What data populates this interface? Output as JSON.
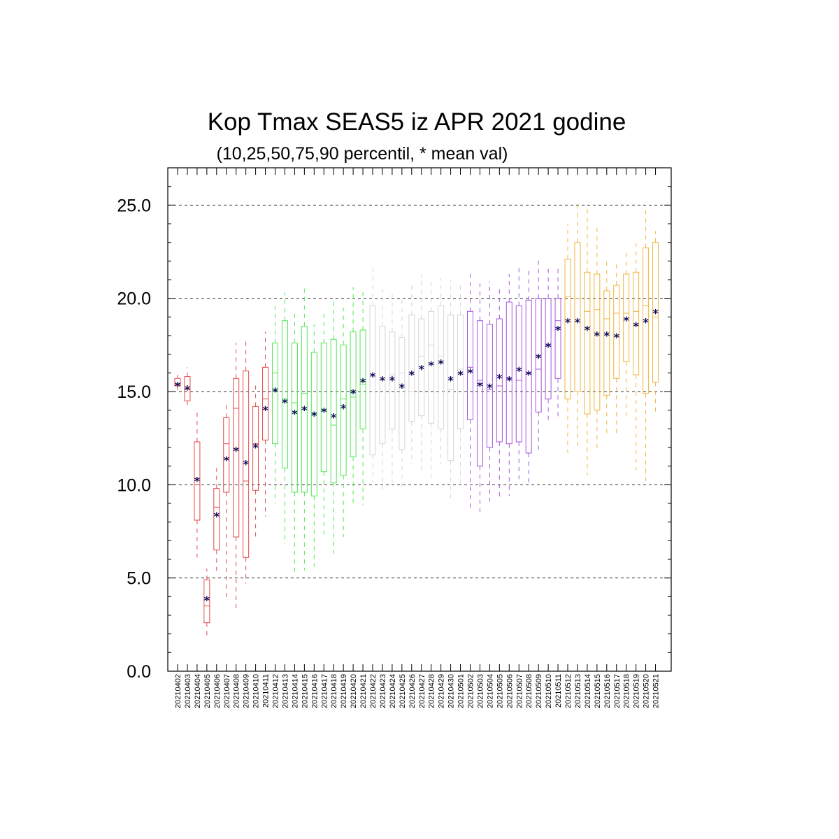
{
  "chart_data": {
    "type": "box",
    "title": "Kop Tmax SEAS5 iz APR 2021 godine",
    "subtitle": "(10,25,50,75,90 percentil, * mean val)",
    "xlabel": "",
    "ylabel": "",
    "ylim": [
      0,
      27
    ],
    "yticks": [
      "0.0",
      "5.0",
      "10.0",
      "15.0",
      "20.0",
      "25.0"
    ],
    "ytick_values": [
      0,
      5,
      10,
      15,
      20,
      25
    ],
    "ygrid": [
      5,
      10,
      15,
      20,
      25
    ],
    "grid": true,
    "colors": {
      "red": "#e34a4a",
      "green": "#55e655",
      "gray": "#d6d6d6",
      "purple": "#a855e0",
      "orange": "#f0b43c",
      "mean": "#0a0a5a"
    },
    "categories": [
      "20210402",
      "20210403",
      "20210404",
      "20210405",
      "20210406",
      "20210407",
      "20210408",
      "20210409",
      "20210410",
      "20210411",
      "20210412",
      "20210413",
      "20210414",
      "20210415",
      "20210416",
      "20210417",
      "20210418",
      "20210419",
      "20210420",
      "20210421",
      "20210422",
      "20210423",
      "20210424",
      "20210425",
      "20210426",
      "20210427",
      "20210428",
      "20210429",
      "20210430",
      "20210501",
      "20210502",
      "20210503",
      "20210504",
      "20210505",
      "20210506",
      "20210507",
      "20210508",
      "20210509",
      "20210510",
      "20210511",
      "20210512",
      "20210513",
      "20210514",
      "20210515",
      "20210516",
      "20210517",
      "20210518",
      "20210519",
      "20210520",
      "20210521"
    ],
    "boxes": [
      {
        "p10": 15.0,
        "p25": 15.3,
        "p50": 15.4,
        "p75": 15.7,
        "p90": 15.9,
        "mean": 15.4,
        "color": "red"
      },
      {
        "p10": 14.2,
        "p25": 14.5,
        "p50": 15.1,
        "p75": 15.8,
        "p90": 16.3,
        "mean": 15.2,
        "color": "red"
      },
      {
        "p10": 6.1,
        "p25": 8.1,
        "p50": 10.0,
        "p75": 12.3,
        "p90": 14.0,
        "mean": 10.3,
        "color": "red"
      },
      {
        "p10": 1.9,
        "p25": 2.6,
        "p50": 3.5,
        "p75": 4.9,
        "p90": 5.5,
        "mean": 3.9,
        "color": "red"
      },
      {
        "p10": 5.3,
        "p25": 6.5,
        "p50": 8.8,
        "p75": 9.8,
        "p90": 10.9,
        "mean": 8.4,
        "color": "red"
      },
      {
        "p10": 3.9,
        "p25": 9.6,
        "p50": 12.2,
        "p75": 13.6,
        "p90": 14.5,
        "mean": 11.4,
        "color": "red"
      },
      {
        "p10": 3.3,
        "p25": 7.2,
        "p50": 14.1,
        "p75": 15.7,
        "p90": 17.6,
        "mean": 11.9,
        "color": "red"
      },
      {
        "p10": 4.7,
        "p25": 6.1,
        "p50": 10.2,
        "p75": 16.1,
        "p90": 17.9,
        "mean": 11.2,
        "color": "red"
      },
      {
        "p10": 7.1,
        "p25": 9.7,
        "p50": 12.2,
        "p75": 14.2,
        "p90": 15.4,
        "mean": 12.1,
        "color": "red"
      },
      {
        "p10": 8.3,
        "p25": 12.4,
        "p50": 14.6,
        "p75": 16.3,
        "p90": 18.2,
        "mean": 14.1,
        "color": "red"
      },
      {
        "p10": 9.0,
        "p25": 12.2,
        "p50": 16.0,
        "p75": 17.6,
        "p90": 19.6,
        "mean": 15.1,
        "color": "green"
      },
      {
        "p10": 6.8,
        "p25": 10.9,
        "p50": 14.6,
        "p75": 18.8,
        "p90": 20.3,
        "mean": 14.5,
        "color": "green"
      },
      {
        "p10": 5.3,
        "p25": 9.6,
        "p50": 14.4,
        "p75": 17.6,
        "p90": 19.4,
        "mean": 13.9,
        "color": "green"
      },
      {
        "p10": 5.4,
        "p25": 9.6,
        "p50": 14.9,
        "p75": 18.5,
        "p90": 20.6,
        "mean": 14.1,
        "color": "green"
      },
      {
        "p10": 5.6,
        "p25": 9.4,
        "p50": 13.8,
        "p75": 17.1,
        "p90": 18.6,
        "mean": 13.8,
        "color": "green"
      },
      {
        "p10": 7.3,
        "p25": 10.7,
        "p50": 14.0,
        "p75": 17.6,
        "p90": 19.4,
        "mean": 14.0,
        "color": "green"
      },
      {
        "p10": 6.3,
        "p25": 10.1,
        "p50": 13.2,
        "p75": 17.8,
        "p90": 19.9,
        "mean": 13.7,
        "color": "green"
      },
      {
        "p10": 7.2,
        "p25": 10.5,
        "p50": 14.6,
        "p75": 17.5,
        "p90": 19.5,
        "mean": 14.2,
        "color": "green"
      },
      {
        "p10": 8.9,
        "p25": 11.5,
        "p50": 14.7,
        "p75": 18.2,
        "p90": 20.6,
        "mean": 15.0,
        "color": "green"
      },
      {
        "p10": 8.9,
        "p25": 13.0,
        "p50": 15.4,
        "p75": 18.3,
        "p90": 20.4,
        "mean": 15.6,
        "color": "green"
      },
      {
        "p10": 10.1,
        "p25": 11.6,
        "p50": 15.8,
        "p75": 19.6,
        "p90": 21.6,
        "mean": 15.9,
        "color": "gray"
      },
      {
        "p10": 9.6,
        "p25": 12.2,
        "p50": 15.6,
        "p75": 18.5,
        "p90": 20.5,
        "mean": 15.7,
        "color": "gray"
      },
      {
        "p10": 10.1,
        "p25": 13.0,
        "p50": 15.9,
        "p75": 18.2,
        "p90": 20.3,
        "mean": 15.7,
        "color": "gray"
      },
      {
        "p10": 9.7,
        "p25": 11.9,
        "p50": 16.0,
        "p75": 17.9,
        "p90": 20.0,
        "mean": 15.3,
        "color": "gray"
      },
      {
        "p10": 11.1,
        "p25": 13.4,
        "p50": 15.0,
        "p75": 19.1,
        "p90": 20.9,
        "mean": 16.0,
        "color": "gray"
      },
      {
        "p10": 10.7,
        "p25": 13.7,
        "p50": 16.9,
        "p75": 18.9,
        "p90": 21.3,
        "mean": 16.3,
        "color": "gray"
      },
      {
        "p10": 10.2,
        "p25": 13.3,
        "p50": 17.5,
        "p75": 19.3,
        "p90": 21.0,
        "mean": 16.5,
        "color": "gray"
      },
      {
        "p10": 11.1,
        "p25": 13.0,
        "p50": 16.9,
        "p75": 19.6,
        "p90": 21.1,
        "mean": 16.6,
        "color": "gray"
      },
      {
        "p10": 9.1,
        "p25": 11.3,
        "p50": 15.1,
        "p75": 19.1,
        "p90": 21.0,
        "mean": 15.7,
        "color": "gray"
      },
      {
        "p10": 10.1,
        "p25": 13.0,
        "p50": 16.2,
        "p75": 19.1,
        "p90": 20.7,
        "mean": 16.0,
        "color": "gray"
      },
      {
        "p10": 8.6,
        "p25": 13.5,
        "p50": 16.3,
        "p75": 19.3,
        "p90": 21.4,
        "mean": 16.1,
        "color": "purple"
      },
      {
        "p10": 8.3,
        "p25": 11.0,
        "p50": 15.6,
        "p75": 18.8,
        "p90": 20.8,
        "mean": 15.4,
        "color": "purple"
      },
      {
        "p10": 9.1,
        "p25": 12.0,
        "p50": 15.1,
        "p75": 18.6,
        "p90": 20.9,
        "mean": 15.3,
        "color": "purple"
      },
      {
        "p10": 9.3,
        "p25": 12.3,
        "p50": 15.3,
        "p75": 18.9,
        "p90": 20.6,
        "mean": 15.8,
        "color": "purple"
      },
      {
        "p10": 9.4,
        "p25": 12.2,
        "p50": 15.7,
        "p75": 19.8,
        "p90": 21.3,
        "mean": 15.7,
        "color": "purple"
      },
      {
        "p10": 10.3,
        "p25": 12.3,
        "p50": 15.6,
        "p75": 19.6,
        "p90": 21.8,
        "mean": 16.2,
        "color": "purple"
      },
      {
        "p10": 9.9,
        "p25": 11.7,
        "p50": 16.0,
        "p75": 19.9,
        "p90": 21.5,
        "mean": 16.0,
        "color": "purple"
      },
      {
        "p10": 11.8,
        "p25": 13.9,
        "p50": 16.2,
        "p75": 20.0,
        "p90": 22.1,
        "mean": 16.9,
        "color": "purple"
      },
      {
        "p10": 13.3,
        "p25": 14.6,
        "p50": 17.5,
        "p75": 20.0,
        "p90": 21.6,
        "mean": 17.5,
        "color": "purple"
      },
      {
        "p10": 13.5,
        "p25": 15.7,
        "p50": 18.8,
        "p75": 20.0,
        "p90": 21.8,
        "mean": 18.4,
        "color": "purple"
      },
      {
        "p10": 11.7,
        "p25": 14.6,
        "p50": 20.1,
        "p75": 22.1,
        "p90": 24.0,
        "mean": 18.8,
        "color": "orange"
      },
      {
        "p10": 12.0,
        "p25": 15.0,
        "p50": 20.0,
        "p75": 23.0,
        "p90": 25.0,
        "mean": 18.8,
        "color": "orange"
      },
      {
        "p10": 10.5,
        "p25": 13.8,
        "p50": 19.3,
        "p75": 21.4,
        "p90": 25.0,
        "mean": 18.4,
        "color": "orange"
      },
      {
        "p10": 11.9,
        "p25": 14.0,
        "p50": 19.4,
        "p75": 21.3,
        "p90": 24.0,
        "mean": 18.1,
        "color": "orange"
      },
      {
        "p10": 12.7,
        "p25": 14.8,
        "p50": 18.9,
        "p75": 20.4,
        "p90": 22.2,
        "mean": 18.1,
        "color": "orange"
      },
      {
        "p10": 12.6,
        "p25": 15.7,
        "p50": 19.2,
        "p75": 20.7,
        "p90": 22.0,
        "mean": 18.0,
        "color": "orange"
      },
      {
        "p10": 13.7,
        "p25": 16.6,
        "p50": 19.2,
        "p75": 21.3,
        "p90": 22.6,
        "mean": 18.9,
        "color": "orange"
      },
      {
        "p10": 10.8,
        "p25": 15.9,
        "p50": 19.3,
        "p75": 21.4,
        "p90": 23.1,
        "mean": 18.6,
        "color": "orange"
      },
      {
        "p10": 10.2,
        "p25": 14.9,
        "p50": 19.6,
        "p75": 22.7,
        "p90": 24.7,
        "mean": 18.8,
        "color": "orange"
      },
      {
        "p10": 13.9,
        "p25": 15.5,
        "p50": 19.0,
        "p75": 23.0,
        "p90": 23.6,
        "mean": 19.3,
        "color": "orange"
      }
    ]
  }
}
